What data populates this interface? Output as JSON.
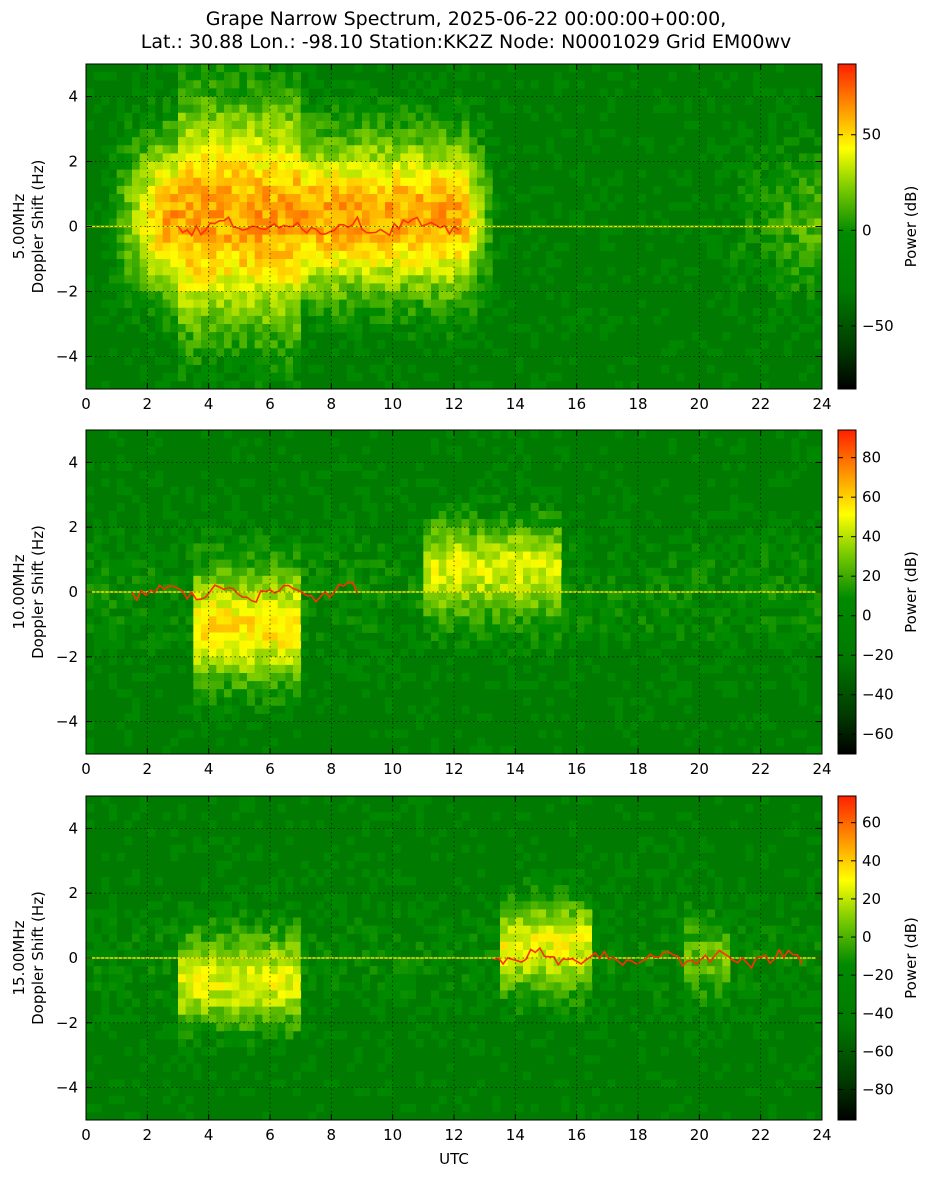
{
  "figure": {
    "title_line1": "Grape Narrow Spectrum, 2025-06-22 00:00:00+00:00,",
    "title_line2": "Lat.: 30.88 Lon.: -98.10 Station:KK2Z Node: N0001029 Grid EM00wv",
    "xlabel": "UTC"
  },
  "chart_data": [
    {
      "type": "heatmap",
      "panel": "5.00MHz",
      "ylabel_line1": "5.00MHz",
      "ylabel_line2": "Doppler Shift (Hz)",
      "xlabel": "",
      "x_range": [
        0,
        24
      ],
      "y_range": [
        -5,
        5
      ],
      "x_ticks": [
        0,
        2,
        4,
        6,
        8,
        10,
        12,
        14,
        16,
        18,
        20,
        22,
        24
      ],
      "y_ticks": [
        -4,
        -2,
        0,
        2,
        4
      ],
      "colorbar": {
        "label": "Power (dB)",
        "range": [
          -83,
          87
        ],
        "ticks": [
          -50,
          0,
          50
        ]
      },
      "grid": true,
      "colors": {
        "low": "#000000",
        "mid": "#007a00",
        "high_mid": "#ffff00",
        "peak": "#ff2000"
      }
    },
    {
      "type": "heatmap",
      "panel": "10.00MHz",
      "ylabel_line1": "10.00MHz",
      "ylabel_line2": "Doppler Shift (Hz)",
      "xlabel": "",
      "x_range": [
        0,
        24
      ],
      "y_range": [
        -5,
        5
      ],
      "x_ticks": [
        0,
        2,
        4,
        6,
        8,
        10,
        12,
        14,
        16,
        18,
        20,
        22,
        24
      ],
      "y_ticks": [
        -4,
        -2,
        0,
        2,
        4
      ],
      "colorbar": {
        "label": "Power (dB)",
        "range": [
          -70,
          94
        ],
        "ticks": [
          -60,
          -40,
          -20,
          0,
          20,
          40,
          60,
          80
        ]
      },
      "grid": true,
      "colors": {
        "low": "#000000",
        "mid": "#007a00",
        "high_mid": "#ffff00",
        "peak": "#ff2000"
      }
    },
    {
      "type": "heatmap",
      "panel": "15.00MHz",
      "ylabel_line1": "15.00MHz",
      "ylabel_line2": "Doppler Shift (Hz)",
      "xlabel": "UTC",
      "x_range": [
        0,
        24
      ],
      "y_range": [
        -5,
        5
      ],
      "x_ticks": [
        0,
        2,
        4,
        6,
        8,
        10,
        12,
        14,
        16,
        18,
        20,
        22,
        24
      ],
      "y_ticks": [
        -4,
        -2,
        0,
        2,
        4
      ],
      "colorbar": {
        "label": "Power (dB)",
        "range": [
          -96,
          74
        ],
        "ticks": [
          -80,
          -60,
          -40,
          -20,
          0,
          20,
          40,
          60
        ]
      },
      "grid": true,
      "colors": {
        "low": "#000000",
        "mid": "#007a00",
        "high_mid": "#ffff00",
        "peak": "#ff2000"
      }
    }
  ]
}
